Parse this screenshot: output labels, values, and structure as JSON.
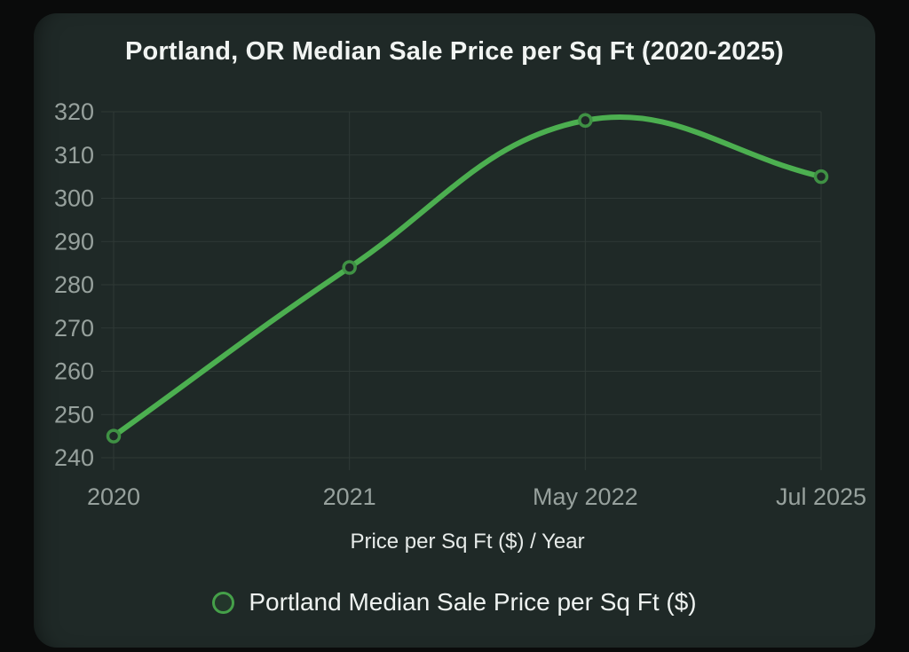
{
  "chart_data": {
    "type": "line",
    "title": "Portland, OR Median Sale Price per Sq Ft (2020-2025)",
    "categories": [
      "2020",
      "2021",
      "May 2022",
      "Jul 2025"
    ],
    "series": [
      {
        "name": "Portland Median Sale Price per Sq Ft ($)",
        "values": [
          245,
          284,
          318,
          305
        ]
      }
    ],
    "xlabel": "Price per Sq Ft ($) / Year",
    "ylabel": "",
    "ylim": [
      240,
      320
    ],
    "y_ticks": [
      240,
      250,
      260,
      270,
      280,
      290,
      300,
      310,
      320
    ],
    "grid": true,
    "legend_position": "bottom",
    "smooth_tension": 0.4
  },
  "colors": {
    "line": "#4caf50",
    "marker_border": "#3f9144",
    "marker_fill": "#1f2927",
    "grid": "#2f3936",
    "tick_label": "#97a19d",
    "panel_bg": "#1f2927",
    "page_bg": "#0a0b0b",
    "title_text": "#f1f4f2",
    "legend_ring": "#45a049"
  }
}
